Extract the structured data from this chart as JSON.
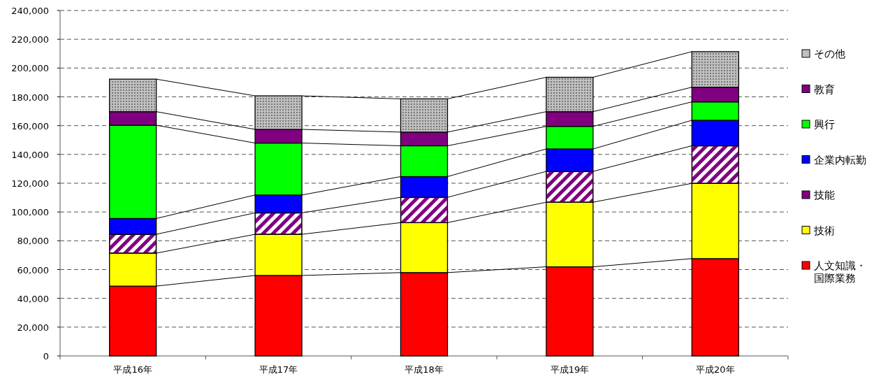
{
  "chart_data": {
    "type": "bar",
    "stacked": true,
    "categories": [
      "平成16年",
      "平成17年",
      "平成18年",
      "平成19年",
      "平成20年"
    ],
    "series": [
      {
        "name": "人文知識・国際業務",
        "color": "#ff0000",
        "values": [
          48500,
          55900,
          57900,
          61900,
          67600
        ]
      },
      {
        "name": "技術",
        "color": "#ffff00",
        "values": [
          22900,
          28600,
          34700,
          44900,
          52300
        ]
      },
      {
        "name": "技能",
        "color": "#800080",
        "values": [
          13100,
          14900,
          17600,
          21400,
          26100
        ]
      },
      {
        "name": "企業内転勤",
        "color": "#0000ff",
        "values": [
          11000,
          12400,
          14400,
          15600,
          17700
        ]
      },
      {
        "name": "興行",
        "color": "#00ff00",
        "values": [
          64800,
          36100,
          21400,
          15700,
          12800
        ]
      },
      {
        "name": "教育",
        "color": "#800080",
        "values": [
          9400,
          9500,
          9500,
          10200,
          10200
        ]
      },
      {
        "name": "その他",
        "color": "#c0c0c0",
        "values": [
          22600,
          23300,
          23100,
          23900,
          24700
        ]
      }
    ],
    "ylim": [
      0,
      240000
    ],
    "yticks": [
      0,
      {
        "value": 20000,
        "label": "20,000"
      },
      {
        "value": 40000,
        "label": "40,000"
      },
      {
        "value": 60000,
        "label": "60,000"
      },
      {
        "value": 80000,
        "label": "80,000"
      },
      {
        "value": 100000,
        "label": "100,000"
      },
      {
        "value": 120000,
        "label": "120,000"
      },
      {
        "value": 140000,
        "label": "140,000"
      },
      {
        "value": 160000,
        "label": "160,000"
      },
      {
        "value": 180000,
        "label": "180,000"
      },
      {
        "value": 200000,
        "label": "200,000"
      },
      {
        "value": 220000,
        "label": "220,000"
      },
      {
        "value": 240000,
        "label": "240,000"
      }
    ],
    "grid": "y",
    "legend": "right"
  }
}
